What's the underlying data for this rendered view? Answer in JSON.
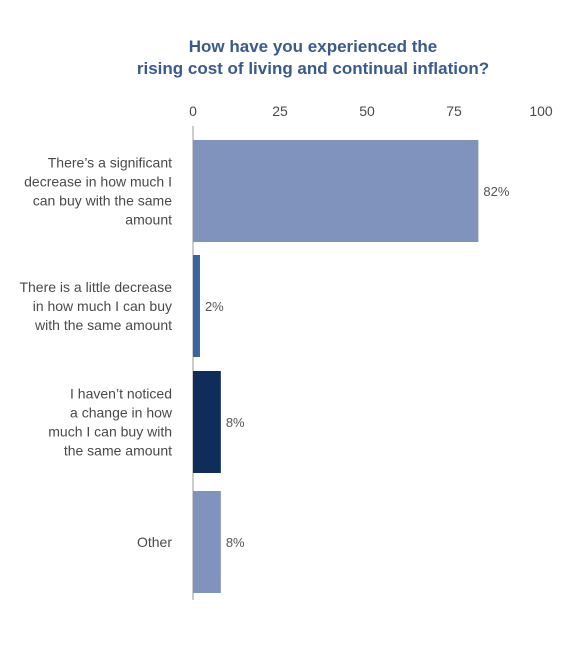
{
  "colors": {
    "title": "#3a5a8c",
    "text": "#4a4a4a",
    "axis_line": "#9a9a9a"
  },
  "chart_data": {
    "type": "bar",
    "orientation": "horizontal",
    "title_lines": [
      "How have you experienced the",
      "rising cost of living and continual inflation?"
    ],
    "xlim": [
      0,
      100
    ],
    "x_ticks": [
      0,
      25,
      50,
      75,
      100
    ],
    "x_axis_position": "top",
    "grid": false,
    "categories": [
      {
        "label_lines": [
          "There’s a significant",
          "decrease in how much I",
          "can buy with the same",
          "amount"
        ],
        "value": 82,
        "value_label": "82%",
        "color": "#7f93bd"
      },
      {
        "label_lines": [
          "There is a little decrease",
          "in how much I can buy",
          "with the same amount"
        ],
        "value": 2,
        "value_label": "2%",
        "color": "#3b63a0"
      },
      {
        "label_lines": [
          "I haven’t noticed",
          "a change in how",
          "much I can buy with",
          "the same amount"
        ],
        "value": 8,
        "value_label": "8%",
        "color": "#0f2d5a"
      },
      {
        "label_lines": [
          "Other"
        ],
        "value": 8,
        "value_label": "8%",
        "color": "#7f93bd"
      }
    ]
  }
}
